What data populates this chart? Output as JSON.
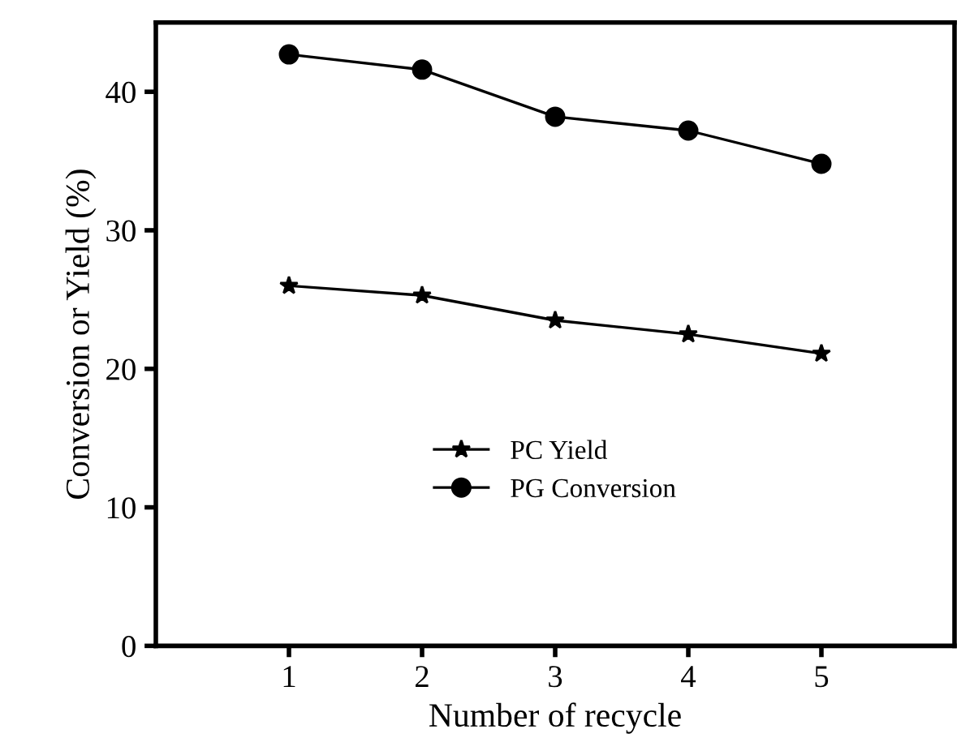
{
  "chart_data": {
    "type": "line",
    "xlabel": "Number of recycle",
    "ylabel": "Conversion or Yield (%)",
    "x": [
      1,
      2,
      3,
      4,
      5
    ],
    "series": [
      {
        "name": "PC Yield",
        "color": "#000000",
        "marker": "star",
        "values": [
          26.0,
          25.3,
          23.5,
          22.5,
          21.1
        ]
      },
      {
        "name": "PG Conversion",
        "color": "#000000",
        "marker": "circle",
        "values": [
          42.7,
          41.6,
          38.2,
          37.2,
          34.8
        ]
      }
    ],
    "xlim": [
      0,
      6
    ],
    "xticks": [
      {
        "value": 1,
        "label": "1"
      },
      {
        "value": 2,
        "label": "2"
      },
      {
        "value": 3,
        "label": "3"
      },
      {
        "value": 4,
        "label": "4"
      },
      {
        "value": 5,
        "label": "5"
      }
    ],
    "ylim": [
      0,
      45
    ],
    "yticks": [
      0,
      10,
      20,
      30,
      40
    ],
    "grid": false,
    "legend": "center",
    "line_style": "solid"
  }
}
